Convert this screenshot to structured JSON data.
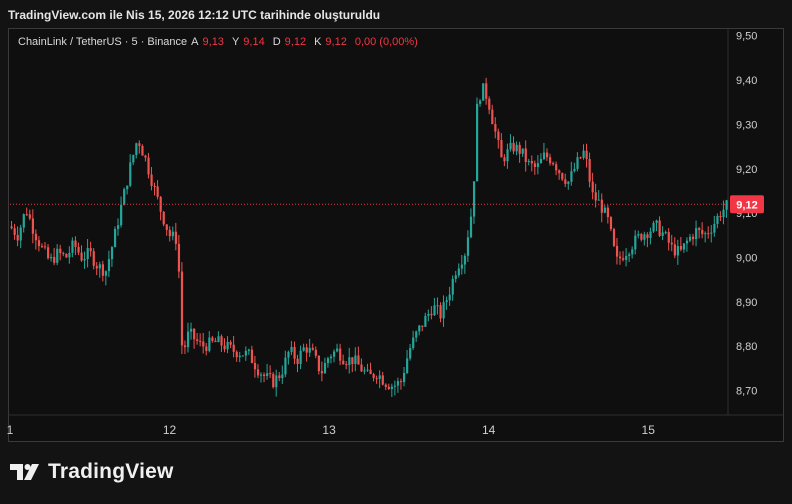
{
  "header": {
    "caption": "TradingView.com ile Nis 15, 2026 12:12 UTC tarihinde oluşturuldu"
  },
  "legend": {
    "symbol": "ChainLink / TetherUS · 5 · Binance",
    "open_label": "A",
    "open": "9,13",
    "high_label": "Y",
    "high": "9,14",
    "low_label": "D",
    "low": "9,12",
    "close_label": "K",
    "close": "9,12",
    "change": "0,00 (0,00%)"
  },
  "footer": {
    "brand": "TradingView"
  },
  "colors": {
    "up": "#26a69a",
    "down": "#ef5350",
    "last_price": "#f23645",
    "background": "#0f0f0f"
  },
  "chart_data": {
    "type": "candlestick",
    "title": "ChainLink / TetherUS · 5 · Binance",
    "ylim": [
      8.645,
      9.515
    ],
    "y_ticks": [
      "9,50",
      "9,40",
      "9,30",
      "9,20",
      "9,10",
      "9,00",
      "8,90",
      "8,80",
      "8,70"
    ],
    "y_tick_values": [
      9.5,
      9.4,
      9.3,
      9.2,
      9.1,
      9.0,
      8.9,
      8.8,
      8.7
    ],
    "x_ticks": [
      "1",
      "12",
      "13",
      "14",
      "15"
    ],
    "x_tick_values": [
      11.0,
      12.0,
      13.0,
      14.0,
      15.0
    ],
    "xlim": [
      11.0,
      15.5
    ],
    "last_price": 9.12,
    "last_price_label": "9,12",
    "price_path": [
      [
        11.0,
        9.07
      ],
      [
        11.05,
        9.05
      ],
      [
        11.1,
        9.11
      ],
      [
        11.15,
        9.06
      ],
      [
        11.2,
        9.02
      ],
      [
        11.25,
        8.99
      ],
      [
        11.3,
        9.01
      ],
      [
        11.35,
        9.0
      ],
      [
        11.4,
        9.03
      ],
      [
        11.45,
        9.0
      ],
      [
        11.5,
        9.01
      ],
      [
        11.55,
        8.98
      ],
      [
        11.6,
        8.97
      ],
      [
        11.65,
        9.04
      ],
      [
        11.7,
        9.12
      ],
      [
        11.75,
        9.2
      ],
      [
        11.8,
        9.27
      ],
      [
        11.85,
        9.22
      ],
      [
        11.9,
        9.16
      ],
      [
        11.95,
        9.1
      ],
      [
        12.0,
        9.05
      ],
      [
        12.05,
        9.04
      ],
      [
        12.08,
        8.78
      ],
      [
        12.12,
        8.83
      ],
      [
        12.2,
        8.8
      ],
      [
        12.3,
        8.81
      ],
      [
        12.4,
        8.79
      ],
      [
        12.5,
        8.78
      ],
      [
        12.55,
        8.75
      ],
      [
        12.6,
        8.73
      ],
      [
        12.65,
        8.72
      ],
      [
        12.7,
        8.74
      ],
      [
        12.75,
        8.79
      ],
      [
        12.8,
        8.77
      ],
      [
        12.85,
        8.8
      ],
      [
        12.9,
        8.78
      ],
      [
        12.95,
        8.74
      ],
      [
        13.0,
        8.78
      ],
      [
        13.05,
        8.79
      ],
      [
        13.1,
        8.77
      ],
      [
        13.15,
        8.77
      ],
      [
        13.2,
        8.75
      ],
      [
        13.25,
        8.73
      ],
      [
        13.3,
        8.74
      ],
      [
        13.35,
        8.72
      ],
      [
        13.4,
        8.71
      ],
      [
        13.45,
        8.72
      ],
      [
        13.5,
        8.79
      ],
      [
        13.55,
        8.83
      ],
      [
        13.6,
        8.86
      ],
      [
        13.65,
        8.89
      ],
      [
        13.7,
        8.87
      ],
      [
        13.75,
        8.92
      ],
      [
        13.8,
        8.98
      ],
      [
        13.85,
        9.01
      ],
      [
        13.9,
        9.12
      ],
      [
        13.93,
        9.36
      ],
      [
        13.97,
        9.38
      ],
      [
        14.0,
        9.35
      ],
      [
        14.03,
        9.3
      ],
      [
        14.08,
        9.22
      ],
      [
        14.15,
        9.25
      ],
      [
        14.2,
        9.24
      ],
      [
        14.25,
        9.21
      ],
      [
        14.3,
        9.2
      ],
      [
        14.35,
        9.23
      ],
      [
        14.4,
        9.22
      ],
      [
        14.45,
        9.19
      ],
      [
        14.5,
        9.17
      ],
      [
        14.55,
        9.21
      ],
      [
        14.6,
        9.24
      ],
      [
        14.65,
        9.14
      ],
      [
        14.7,
        9.12
      ],
      [
        14.75,
        9.08
      ],
      [
        14.8,
        8.99
      ],
      [
        14.85,
        9.01
      ],
      [
        14.9,
        9.03
      ],
      [
        14.95,
        9.05
      ],
      [
        15.0,
        9.06
      ],
      [
        15.05,
        9.07
      ],
      [
        15.1,
        9.05
      ],
      [
        15.15,
        9.02
      ],
      [
        15.2,
        9.01
      ],
      [
        15.25,
        9.04
      ],
      [
        15.3,
        9.06
      ],
      [
        15.35,
        9.05
      ],
      [
        15.4,
        9.07
      ],
      [
        15.45,
        9.1
      ],
      [
        15.5,
        9.12
      ]
    ]
  }
}
